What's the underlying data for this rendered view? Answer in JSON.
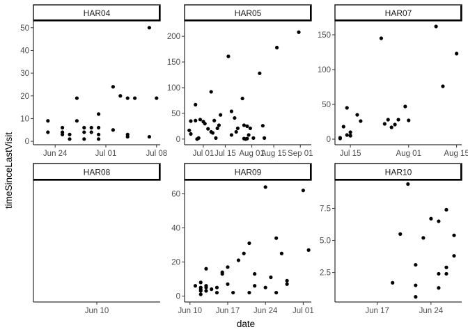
{
  "chart_data": {
    "type": "scatter",
    "layout": "facet_wrap",
    "xlabel": "date",
    "ylabel": "timeSinceLastVisit",
    "panels": [
      {
        "name": "HAR04",
        "xlim": [
          -2.0,
          15.5
        ],
        "ylim": [
          -1.5,
          53.0
        ],
        "xticks": [
          {
            "v": 1,
            "label": "Jun 24"
          },
          {
            "v": 8,
            "label": "Jul 01"
          },
          {
            "v": 15,
            "label": "Jul 08"
          }
        ],
        "yticks": [
          {
            "v": 0,
            "label": "0"
          },
          {
            "v": 10,
            "label": "10"
          },
          {
            "v": 20,
            "label": "20"
          },
          {
            "v": 30,
            "label": "30"
          },
          {
            "v": 40,
            "label": "40"
          },
          {
            "v": 50,
            "label": "50"
          }
        ],
        "points": [
          [
            0,
            9
          ],
          [
            0,
            4
          ],
          [
            2,
            6
          ],
          [
            2,
            4
          ],
          [
            2,
            3
          ],
          [
            3,
            3
          ],
          [
            3,
            1
          ],
          [
            4,
            9
          ],
          [
            4,
            19
          ],
          [
            5,
            6
          ],
          [
            5,
            4
          ],
          [
            5,
            1
          ],
          [
            6,
            6
          ],
          [
            6,
            4
          ],
          [
            7,
            3
          ],
          [
            7,
            6
          ],
          [
            7,
            12
          ],
          [
            7,
            1
          ],
          [
            9,
            24
          ],
          [
            9,
            5
          ],
          [
            10,
            20
          ],
          [
            11,
            19
          ],
          [
            11,
            3
          ],
          [
            11,
            2
          ],
          [
            12,
            19
          ],
          [
            14,
            50
          ],
          [
            14,
            2
          ],
          [
            15,
            19
          ]
        ]
      },
      {
        "name": "HAR05",
        "xlim": [
          -12.0,
          69.0
        ],
        "ylim": [
          -11.0,
          230.0
        ],
        "xticks": [
          {
            "v": 0,
            "label": "Jul 01"
          },
          {
            "v": 14,
            "label": "Jul 15"
          },
          {
            "v": 31,
            "label": "Aug 01"
          },
          {
            "v": 45,
            "label": "Aug 15"
          },
          {
            "v": 62,
            "label": "Sep 01"
          }
        ],
        "yticks": [
          {
            "v": 0,
            "label": "0"
          },
          {
            "v": 50,
            "label": "50"
          },
          {
            "v": 100,
            "label": "100"
          },
          {
            "v": 150,
            "label": "150"
          },
          {
            "v": 200,
            "label": "200"
          }
        ],
        "points": [
          [
            -9,
            17
          ],
          [
            -8,
            35
          ],
          [
            -8,
            10
          ],
          [
            -5,
            67
          ],
          [
            -5,
            36
          ],
          [
            -4,
            0
          ],
          [
            -3,
            2
          ],
          [
            -2,
            38
          ],
          [
            0,
            34
          ],
          [
            1,
            30
          ],
          [
            3,
            20
          ],
          [
            5,
            92
          ],
          [
            5,
            14
          ],
          [
            6,
            12
          ],
          [
            7,
            36
          ],
          [
            8,
            2
          ],
          [
            9,
            21
          ],
          [
            10,
            27
          ],
          [
            11,
            47
          ],
          [
            16,
            161
          ],
          [
            18,
            54
          ],
          [
            18,
            8
          ],
          [
            20,
            41
          ],
          [
            21,
            14
          ],
          [
            22,
            21
          ],
          [
            25,
            79
          ],
          [
            26,
            27
          ],
          [
            26,
            1
          ],
          [
            27,
            0
          ],
          [
            28,
            25
          ],
          [
            28,
            1
          ],
          [
            29,
            8
          ],
          [
            30,
            21
          ],
          [
            32,
            2
          ],
          [
            36,
            128
          ],
          [
            38,
            26
          ],
          [
            39,
            2
          ],
          [
            47,
            178
          ],
          [
            61,
            208
          ]
        ]
      },
      {
        "name": "HAR07",
        "xlim": [
          -4.5,
          32.5
        ],
        "ylim": [
          -8.0,
          170.0
        ],
        "xticks": [
          {
            "v": 0,
            "label": "Jul 15"
          },
          {
            "v": 17,
            "label": "Aug 01"
          },
          {
            "v": 31,
            "label": "Aug 15"
          }
        ],
        "yticks": [
          {
            "v": 0,
            "label": "0"
          },
          {
            "v": 50,
            "label": "50"
          },
          {
            "v": 100,
            "label": "100"
          },
          {
            "v": 150,
            "label": "150"
          }
        ],
        "points": [
          [
            -3,
            2
          ],
          [
            -3,
            1
          ],
          [
            -2,
            18
          ],
          [
            -1,
            45
          ],
          [
            -1,
            6
          ],
          [
            0,
            5
          ],
          [
            0,
            10
          ],
          [
            0,
            5
          ],
          [
            2,
            35
          ],
          [
            3,
            26
          ],
          [
            9,
            145
          ],
          [
            10,
            22
          ],
          [
            11,
            28
          ],
          [
            12,
            17
          ],
          [
            13,
            21
          ],
          [
            14,
            28
          ],
          [
            16,
            47
          ],
          [
            17,
            27
          ],
          [
            25,
            162
          ],
          [
            27,
            76
          ],
          [
            31,
            123
          ]
        ]
      },
      {
        "name": "HAR08",
        "xlim": [
          -1.0,
          1.0
        ],
        "ylim": [
          0,
          1
        ],
        "xticks": [
          {
            "v": 0,
            "label": "Jun 10"
          }
        ],
        "yticks": [],
        "points": []
      },
      {
        "name": "HAR09",
        "xlim": [
          -1.0,
          22.5
        ],
        "ylim": [
          -3.5,
          68.0
        ],
        "xticks": [
          {
            "v": 0,
            "label": "Jun 10"
          },
          {
            "v": 7,
            "label": "Jun 17"
          },
          {
            "v": 14,
            "label": "Jun 24"
          },
          {
            "v": 21,
            "label": "Jul 01"
          }
        ],
        "yticks": [
          {
            "v": 0,
            "label": "0"
          },
          {
            "v": 20,
            "label": "20"
          },
          {
            "v": 40,
            "label": "40"
          },
          {
            "v": 60,
            "label": "60"
          }
        ],
        "points": [
          [
            1,
            6
          ],
          [
            2,
            8
          ],
          [
            2,
            5
          ],
          [
            2,
            4
          ],
          [
            2,
            3
          ],
          [
            2,
            1
          ],
          [
            3,
            6
          ],
          [
            3,
            5
          ],
          [
            3,
            16
          ],
          [
            3,
            3
          ],
          [
            4,
            4
          ],
          [
            5,
            5
          ],
          [
            5,
            2
          ],
          [
            6,
            13
          ],
          [
            6,
            14
          ],
          [
            7,
            17
          ],
          [
            7,
            7
          ],
          [
            8,
            2
          ],
          [
            9,
            21
          ],
          [
            10,
            25
          ],
          [
            11,
            31
          ],
          [
            11,
            2
          ],
          [
            12,
            13
          ],
          [
            12,
            6
          ],
          [
            14,
            64
          ],
          [
            14,
            5
          ],
          [
            15,
            11
          ],
          [
            16,
            34
          ],
          [
            16,
            2
          ],
          [
            17,
            25
          ],
          [
            18,
            9
          ],
          [
            18,
            7
          ],
          [
            21,
            62
          ],
          [
            22,
            27
          ]
        ]
      },
      {
        "name": "HAR10",
        "xlim": [
          11.5,
          28.0
        ],
        "ylim": [
          0.2,
          9.7
        ],
        "xticks": [
          {
            "v": 17,
            "label": "Jun 17"
          },
          {
            "v": 24,
            "label": "Jun 24"
          }
        ],
        "yticks": [
          {
            "v": 2.5,
            "label": "2.5"
          },
          {
            "v": 5.0,
            "label": "5.0"
          },
          {
            "v": 7.5,
            "label": "7.5"
          }
        ],
        "points": [
          [
            19,
            1.7
          ],
          [
            20,
            5.5
          ],
          [
            21,
            9.4
          ],
          [
            22,
            3.1
          ],
          [
            22,
            1.5
          ],
          [
            22,
            0.6
          ],
          [
            23,
            5.2
          ],
          [
            24,
            6.7
          ],
          [
            25,
            6.5
          ],
          [
            25,
            2.4
          ],
          [
            25,
            1.3
          ],
          [
            26,
            2.9
          ],
          [
            26,
            7.4
          ],
          [
            26,
            2.4
          ],
          [
            27,
            5.4
          ],
          [
            27,
            3.8
          ]
        ]
      }
    ]
  }
}
